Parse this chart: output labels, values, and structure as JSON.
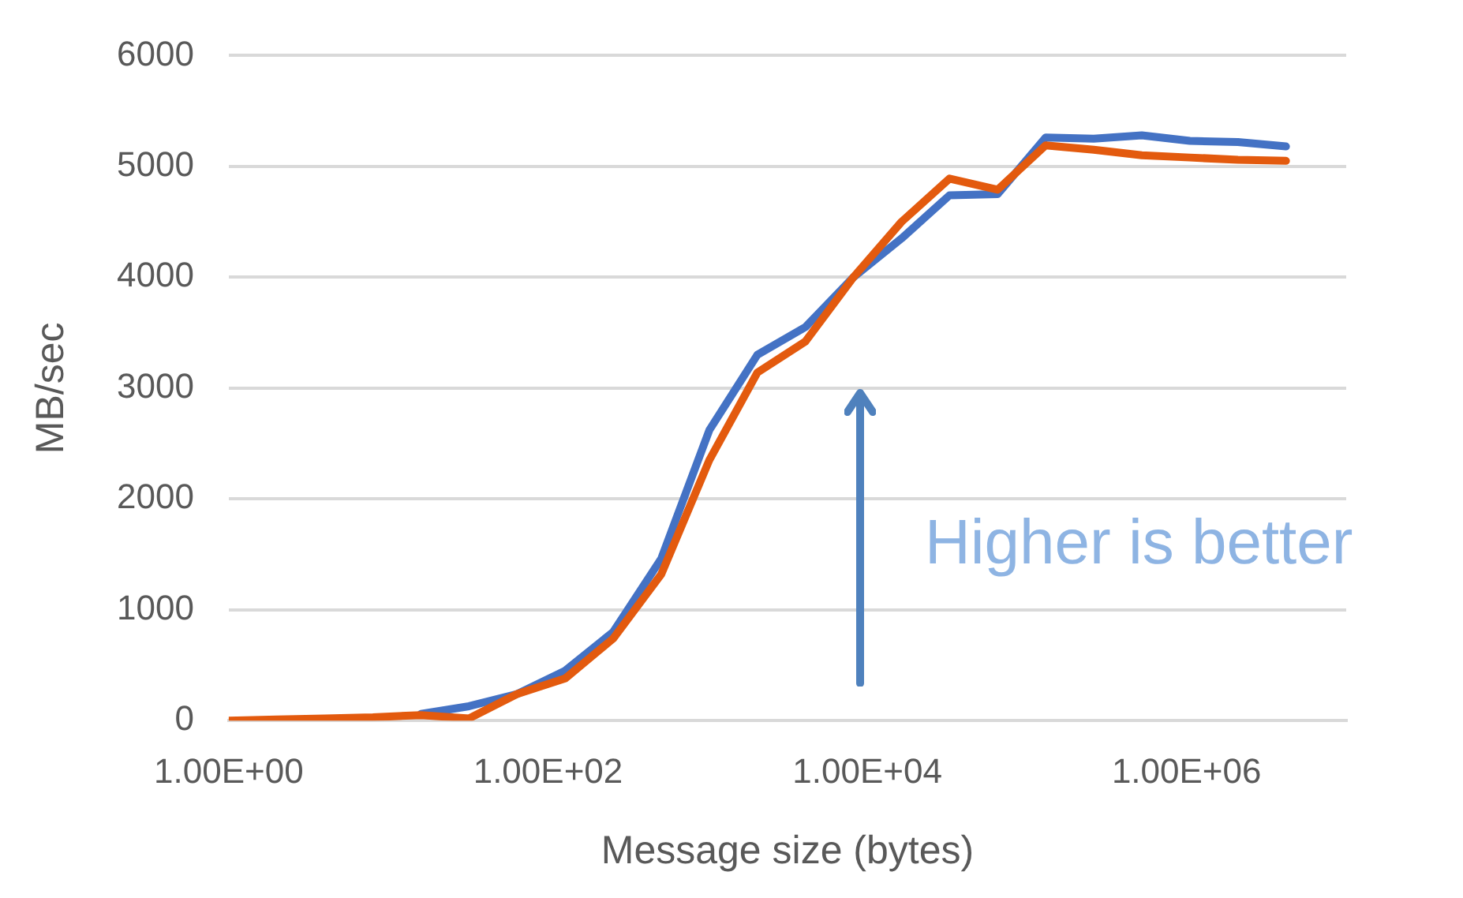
{
  "chart_data": {
    "type": "line",
    "xlabel": "Message size (bytes)",
    "ylabel": "MB/sec",
    "log": "x",
    "x": [
      1,
      2,
      4,
      8,
      16,
      32,
      64,
      128,
      256,
      512,
      1024,
      2048,
      4096,
      8192,
      16384,
      32768,
      65536,
      131072,
      262144,
      524288,
      1048576,
      2097152,
      4194304
    ],
    "series": [
      {
        "color": "#4472c4",
        "values": [
          null,
          null,
          null,
          null,
          60,
          130,
          240,
          450,
          800,
          1460,
          2620,
          3300,
          3550,
          4000,
          4350,
          4740,
          4750,
          5260,
          5250,
          5280,
          5230,
          5220,
          5180
        ]
      },
      {
        "color": "#e35a0e",
        "values": [
          0,
          10,
          20,
          30,
          50,
          20,
          240,
          380,
          740,
          1320,
          2350,
          3140,
          3420,
          4000,
          4500,
          4890,
          4790,
          5190,
          5150,
          5100,
          5080,
          5060,
          5050
        ]
      }
    ],
    "xlim": [
      1,
      10000000
    ],
    "xticks": [
      {
        "value": 1,
        "label": "1.00E+00"
      },
      {
        "value": 100,
        "label": "1.00E+02"
      },
      {
        "value": 10000,
        "label": "1.00E+04"
      },
      {
        "value": 1000000,
        "label": "1.00E+06"
      }
    ],
    "ylim": [
      0,
      6000
    ],
    "yticks": [
      0,
      1000,
      2000,
      3000,
      4000,
      5000,
      6000
    ],
    "grid": "y",
    "legend": false,
    "marker": "none",
    "line_style": "solid",
    "annotations": [
      "Higher is better"
    ]
  }
}
